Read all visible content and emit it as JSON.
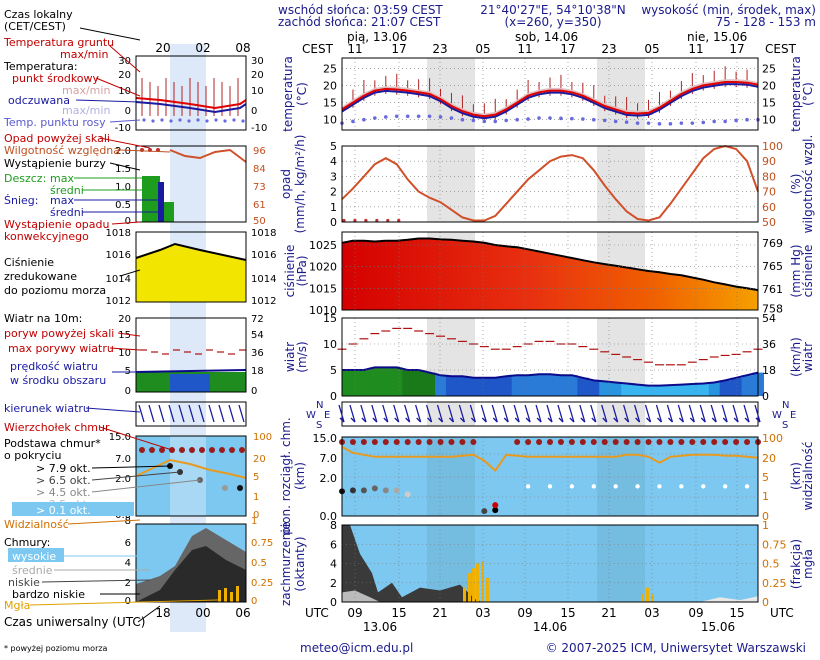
{
  "header": {
    "sunrise": "wschód słońca: 03:59 CEST",
    "sunset": "zachód słońca: 21:07 CEST",
    "coords": "21°40'27\"E, 54°10'38\"N",
    "grid": "(x=260, y=350)",
    "altitude_label": "wysokość (min, środek, max)",
    "altitude_values": "75 - 128 - 153 m"
  },
  "timeline": {
    "cest_label": "CEST",
    "utc_label": "UTC",
    "days_top": [
      "pią, 13.06",
      "sob, 14.06",
      "nie, 15.06"
    ],
    "hours_top": [
      "11",
      "17",
      "23",
      "05",
      "11",
      "17",
      "23",
      "05",
      "11",
      "17"
    ],
    "hours_bottom": [
      "09",
      "15",
      "21",
      "03",
      "09",
      "15",
      "21",
      "03",
      "09",
      "15"
    ],
    "days_bottom": [
      "13.06",
      "14.06",
      "15.06"
    ]
  },
  "legend": {
    "local_time": "Czas lokalny",
    "local_time_sub": "(CET/CEST)",
    "local_hours": [
      "20",
      "02",
      "08"
    ],
    "soil_temp": "Temperatura gruntu",
    "soil_temp_sub": "max/min",
    "temperature": "Temperatura:",
    "midpoint": "punkt środkowy",
    "max_min": "max/min",
    "feels_like": "odczuwana",
    "feels_max_min": "max/min",
    "dew_point": "Temp. punktu rosy",
    "precip_above": "Opad powyżej skali",
    "humidity": "Wilgotność względna",
    "storm": "Wystąpienie burzy",
    "rain": "Deszcz:",
    "rain_max": "max",
    "rain_mean": "średni",
    "snow": "Śnieg:",
    "snow_max": "max",
    "snow_mean": "średni",
    "convective": "Wystąpienie opadu",
    "convective2": "konwekcyjnego",
    "pressure1": "Ciśnienie",
    "pressure2": "zredukowane",
    "pressure3": "do poziomu morza",
    "wind10": "Wiatr na 10m:",
    "gust_above": "poryw powyżej skali",
    "gust_max": "max porywy wiatru",
    "wind_speed": "prędkość wiatru",
    "wind_speed2": "w środku obszaru",
    "wind_dir": "kierunek wiatru",
    "cloud_top": "Wierzchołek chmur",
    "cloud_base": "Podstawa chmur*",
    "cloud_base2": "o pokryciu",
    "okt79": "> 7.9 okt.",
    "okt65": "> 6.5 okt.",
    "okt45": "> 4.5 okt.",
    "okt25": "> 2.5 okt.",
    "okt01": "> 0.1 okt.",
    "visibility": "Widzialność",
    "clouds": "Chmury:",
    "high": "wysokie",
    "mid": "średnie",
    "low": "niskie",
    "very_low": "bardzo niskie",
    "fog": "Mgła",
    "utc_time": "Czas uniwersalny (UTC)",
    "utc_hours": [
      "18",
      "00",
      "06"
    ],
    "footnote": "* powyżej poziomu morza"
  },
  "legend_axes": {
    "temp_left": [
      "30",
      "20",
      "10",
      "0",
      "-10"
    ],
    "temp_right": [
      "30",
      "20",
      "10",
      "0",
      "-10"
    ],
    "precip_left": [
      "2.0",
      "1.5",
      "1.0",
      "0.5",
      "0"
    ],
    "precip_right": [
      "96",
      "84",
      "73",
      "61",
      "50"
    ],
    "press_left": [
      "1018",
      "1016",
      "1014",
      "1012"
    ],
    "press_right": [
      "1018",
      "1016",
      "1014",
      "1012"
    ],
    "wind_left": [
      "20",
      "15",
      "10",
      "5",
      "0"
    ],
    "wind_right": [
      "72",
      "54",
      "36",
      "18",
      "0"
    ],
    "cloud_left": [
      "15.0",
      "7.0",
      "2.0",
      "0.0"
    ],
    "cloud_right": [
      "100",
      "20",
      "5",
      "1",
      "0"
    ],
    "cover_left": [
      "8",
      "6",
      "4",
      "2",
      "0"
    ],
    "cover_right": [
      "1",
      "0.75",
      "0.5",
      "0.25",
      "0"
    ]
  },
  "panels": {
    "temp": {
      "left_label": "temperatura",
      "left_unit": "(°C)",
      "right_label": "temperatura",
      "right_unit": "(°C)",
      "ticks": [
        "25",
        "20",
        "15",
        "10"
      ]
    },
    "precip": {
      "left_label": "opad",
      "left_unit": "(mm/h, kg/m²/h)",
      "right_label": "wilgotność wzgl.",
      "right_unit": "(%)",
      "left_ticks": [
        "5",
        "4",
        "3",
        "2",
        "1",
        "0"
      ],
      "right_ticks": [
        "100",
        "90",
        "80",
        "70",
        "60",
        "50"
      ]
    },
    "pressure": {
      "left_label": "ciśnienie",
      "left_unit": "(hPa)",
      "right_label": "ciśnienie",
      "right_unit": "(mm Hg)",
      "left_ticks": [
        "1025",
        "1020",
        "1015",
        "1010"
      ],
      "right_ticks": [
        "769",
        "765",
        "761",
        "758"
      ]
    },
    "wind": {
      "left_label": "wiatr",
      "left_unit": "(m/s)",
      "right_label": "wiatr",
      "right_unit": "(km/h)",
      "left_ticks": [
        "15",
        "10",
        "5",
        "0"
      ],
      "right_ticks": [
        "54",
        "36",
        "18",
        "0"
      ]
    },
    "clouds": {
      "left_label": "pion. rozciągł. chm.",
      "left_unit": "(km)",
      "right_label": "widzialność",
      "right_unit": "(km)",
      "left_ticks": [
        "15.0",
        "7.0",
        "2.0",
        "0.0"
      ],
      "right_ticks": [
        "100",
        "20",
        "5",
        "1",
        "0"
      ]
    },
    "cover": {
      "left_label": "zachmurzenie",
      "left_unit": "(oktanty)",
      "right_label": "mgła",
      "right_unit": "(frakcja)",
      "left_ticks": [
        "8",
        "6",
        "4",
        "2",
        "0"
      ],
      "right_ticks": [
        "1",
        "0.75",
        "0.5",
        "0.25",
        "0"
      ]
    }
  },
  "footer": {
    "email": "meteo@icm.edu.pl",
    "copyright": "© 2007-2025 ICM, Uniwersytet Warszawski"
  },
  "chart_data": [
    {
      "type": "line",
      "title": "temperatura (°C)",
      "series": [
        {
          "name": "punkt środkowy",
          "values": [
            13,
            15,
            17,
            18.5,
            19,
            18.8,
            18.5,
            18,
            17.5,
            16,
            14,
            12.5,
            11.5,
            11,
            11.5,
            13,
            15,
            17,
            18,
            18.5,
            18.5,
            18,
            17,
            15.5,
            14,
            13,
            12,
            11.8,
            12,
            13.5,
            15.5,
            17.5,
            19,
            20,
            20.5,
            21,
            21,
            20.8,
            20.2
          ]
        },
        {
          "name": "Temp. punktu rosy",
          "values": [
            9,
            9.5,
            10,
            10.5,
            10.8,
            11,
            11,
            11,
            11,
            10.8,
            10.5,
            10,
            9.8,
            9.5,
            9.5,
            9.8,
            10,
            10.2,
            10.5,
            10.5,
            10.4,
            10.3,
            10.2,
            10,
            9.8,
            9.5,
            9.3,
            9,
            9,
            8.8,
            8.8,
            9,
            9,
            9.2,
            9.5,
            9.5,
            9.8,
            10,
            10
          ]
        }
      ]
    },
    {
      "type": "line",
      "title": "wilgotność wzgl. (%)",
      "series": [
        {
          "values": [
            85,
            78,
            70,
            62,
            58,
            62,
            72,
            80,
            84,
            87,
            92,
            97,
            99,
            99,
            96,
            88,
            80,
            72,
            66,
            60,
            57,
            56,
            58,
            66,
            76,
            85,
            93,
            98,
            99,
            97,
            88,
            78,
            68,
            58,
            52,
            50,
            52,
            60,
            80
          ]
        }
      ]
    },
    {
      "type": "area",
      "title": "ciśnienie (hPa)",
      "series": [
        {
          "values": [
            1025.5,
            1026,
            1026,
            1025.8,
            1026,
            1026,
            1026.2,
            1026.5,
            1026.5,
            1026.3,
            1026.2,
            1026,
            1025.8,
            1025.5,
            1025,
            1024.7,
            1024.5,
            1024,
            1023.5,
            1023,
            1022.5,
            1022,
            1021.5,
            1021,
            1020.6,
            1020.2,
            1019.8,
            1019.4,
            1019,
            1018.7,
            1018.3,
            1018,
            1017.5,
            1017,
            1016.4,
            1015.9,
            1015.4,
            1015,
            1014.6
          ]
        }
      ]
    },
    {
      "type": "bar",
      "title": "wiatr (m/s)",
      "series": [
        {
          "name": "prędkość wiatru",
          "values": [
            5,
            5,
            5,
            5.5,
            5.5,
            5.5,
            5,
            5,
            4.5,
            4,
            3.8,
            3.8,
            3.5,
            3.5,
            3.5,
            3.8,
            4,
            4,
            4.2,
            4.2,
            4,
            4,
            3.5,
            3,
            2.8,
            2.6,
            2.4,
            2.2,
            2,
            2,
            2.1,
            2.2,
            2.3,
            2.4,
            2.6,
            3,
            3.5,
            4,
            4.5
          ]
        },
        {
          "name": "max porywy wiatru",
          "values": [
            9,
            10,
            11,
            12,
            12.5,
            13,
            13,
            12.5,
            12,
            11.5,
            11,
            10.5,
            10,
            9.5,
            9,
            9,
            9.5,
            10,
            10.5,
            10.5,
            10,
            10,
            9.5,
            9,
            8.5,
            8,
            7.5,
            7,
            6.5,
            6,
            6,
            6,
            6.5,
            7,
            7.5,
            7.8,
            8,
            8.5,
            9
          ]
        }
      ]
    }
  ]
}
